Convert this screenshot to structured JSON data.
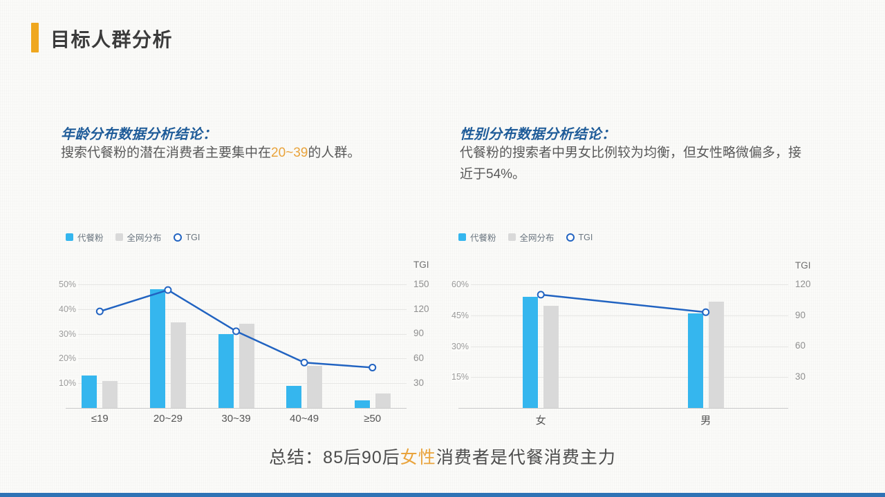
{
  "slide": {
    "title": "目标人群分析",
    "summary": {
      "prefix": "总结：85后90后",
      "highlight": "女性",
      "suffix": "消费者是代餐消费主力"
    }
  },
  "colors": {
    "accent_orange": "#EFA71F",
    "bar_blue": "#35B6EE",
    "bar_gray": "#D9D9D9",
    "line_blue": "#2163C1",
    "heading_blue": "#1F5C99"
  },
  "age_section": {
    "heading": "年龄分布数据分析结论：",
    "body_before": "搜索代餐粉的潜在消费者主要集中在",
    "body_highlight": "20~39",
    "body_after": "的人群。"
  },
  "gender_section": {
    "heading": "性别分布数据分析结论：",
    "body": "代餐粉的搜索者中男女比例较为均衡，但女性略微偏多，接近于54%。"
  },
  "chart_data": [
    {
      "type": "bar",
      "title": "年龄分布",
      "categories": [
        "≤19",
        "20~29",
        "30~39",
        "40~49",
        "≥50"
      ],
      "series": [
        {
          "name": "代餐粉",
          "kind": "bar",
          "color": "#35B6EE",
          "unit": "%",
          "values": [
            13,
            48,
            30,
            9,
            3
          ]
        },
        {
          "name": "全网分布",
          "kind": "bar",
          "color": "#D9D9D9",
          "unit": "%",
          "values": [
            11,
            34.5,
            34,
            17,
            6
          ]
        },
        {
          "name": "TGI",
          "kind": "line",
          "color": "#2163C1",
          "axis": "right",
          "values": [
            117,
            143,
            93,
            55,
            49
          ]
        }
      ],
      "left_axis": {
        "unit": "%",
        "ticks": [
          10,
          20,
          30,
          40,
          50
        ],
        "max": 54.7
      },
      "right_axis": {
        "title": "TGI",
        "ticks": [
          30,
          60,
          90,
          120,
          150
        ],
        "max": 164
      },
      "legend_position": "top-left",
      "grid": true
    },
    {
      "type": "bar",
      "title": "性别分布",
      "categories": [
        "女",
        "男"
      ],
      "series": [
        {
          "name": "代餐粉",
          "kind": "bar",
          "color": "#35B6EE",
          "unit": "%",
          "values": [
            54,
            46
          ]
        },
        {
          "name": "全网分布",
          "kind": "bar",
          "color": "#D9D9D9",
          "unit": "%",
          "values": [
            49.5,
            51.5
          ]
        },
        {
          "name": "TGI",
          "kind": "line",
          "color": "#2163C1",
          "axis": "right",
          "values": [
            110,
            93
          ]
        }
      ],
      "left_axis": {
        "unit": "%",
        "ticks": [
          15,
          30,
          45,
          60
        ],
        "max": 65.4
      },
      "right_axis": {
        "title": "TGI",
        "ticks": [
          30,
          60,
          90,
          120
        ],
        "max": 130.7
      },
      "legend_position": "top-left",
      "grid": true
    }
  ]
}
